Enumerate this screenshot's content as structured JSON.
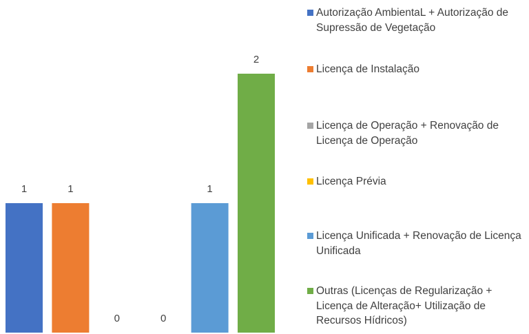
{
  "chart_data": {
    "type": "bar",
    "series": [
      {
        "name": "Autorização AmbientaL + Autorização de Supressão de Vegetação",
        "color": "#4472c4",
        "values": [
          1
        ]
      },
      {
        "name": "Licença de Instalação",
        "color": "#ed7d31",
        "values": [
          1
        ]
      },
      {
        "name": "Licença de Operação + Renovação de Licença de Operação",
        "color": "#a5a5a5",
        "values": [
          0
        ]
      },
      {
        "name": "Licença Prévia",
        "color": "#ffc000",
        "values": [
          0
        ]
      },
      {
        "name": "Licença Unificada + Renovação de Licença Unificada",
        "color": "#5b9bd5",
        "values": [
          1
        ]
      },
      {
        "name": "Outras (Licenças de Regularização + Licença de Alteração+ Utilização de Recursos Hídricos)",
        "color": "#70ad47",
        "values": [
          2
        ]
      }
    ],
    "ylim": [
      0,
      2
    ],
    "legend": "right"
  }
}
